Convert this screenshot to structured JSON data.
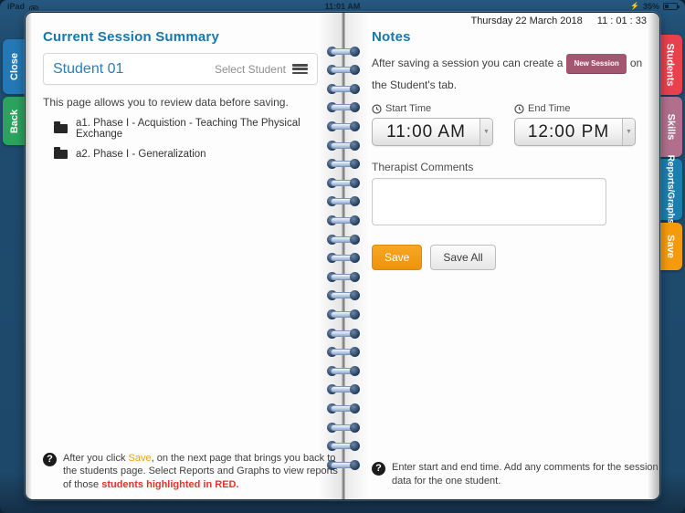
{
  "status_bar": {
    "device": "iPad",
    "time": "11:01 AM",
    "battery_percent": "35%"
  },
  "header": {
    "date": "Thursday 22 March 2018",
    "clock": "11 : 01 : 33"
  },
  "left_page": {
    "title": "Current Session Summary",
    "student_selector": {
      "student_name": "Student 01",
      "select_label": "Select Student"
    },
    "intro": "This page allows you to review data before saving.",
    "skills": [
      {
        "label": "a1. Phase I - Acquistion - Teaching The Physical Exchange"
      },
      {
        "label": "a2. Phase I - Generalization"
      }
    ],
    "help": {
      "pre": "After you click ",
      "save_word": "Save",
      "mid": ", on the next page that brings you back to the students page. Select Reports and Graphs to view reports of those ",
      "red_text": "students highlighted in RED."
    }
  },
  "right_page": {
    "title": "Notes",
    "note_pre": "After saving a session you can create a",
    "new_session_badge": "New Session",
    "note_post": "on the Student's tab.",
    "start_time": {
      "label": "Start Time",
      "value": "11:00 AM"
    },
    "end_time": {
      "label": "End Time",
      "value": "12:00 PM"
    },
    "caret": "▼",
    "comments_label": "Therapist Comments",
    "comments_value": "",
    "save_button": "Save",
    "save_all_button": "Save All",
    "help": "Enter start and end time. Add any comments for the session data for the one student."
  },
  "left_tabs": [
    {
      "label": "Close",
      "color": "#2478b5"
    },
    {
      "label": "Back",
      "color": "#2aa45d"
    }
  ],
  "right_tabs": [
    {
      "label": "Students",
      "color": "#e8404d"
    },
    {
      "label": "Skills",
      "color": "#b06f8b"
    },
    {
      "label": "Reports/Graphs",
      "color": "#1a7fae"
    },
    {
      "label": "Save",
      "color": "#f59b0b"
    }
  ],
  "colors": {
    "frame": "#1d4869",
    "heading_blue": "#1878ad",
    "save_orange": "#f39c12",
    "badge_rose": "#a2566f",
    "alert_red": "#e8312e"
  }
}
